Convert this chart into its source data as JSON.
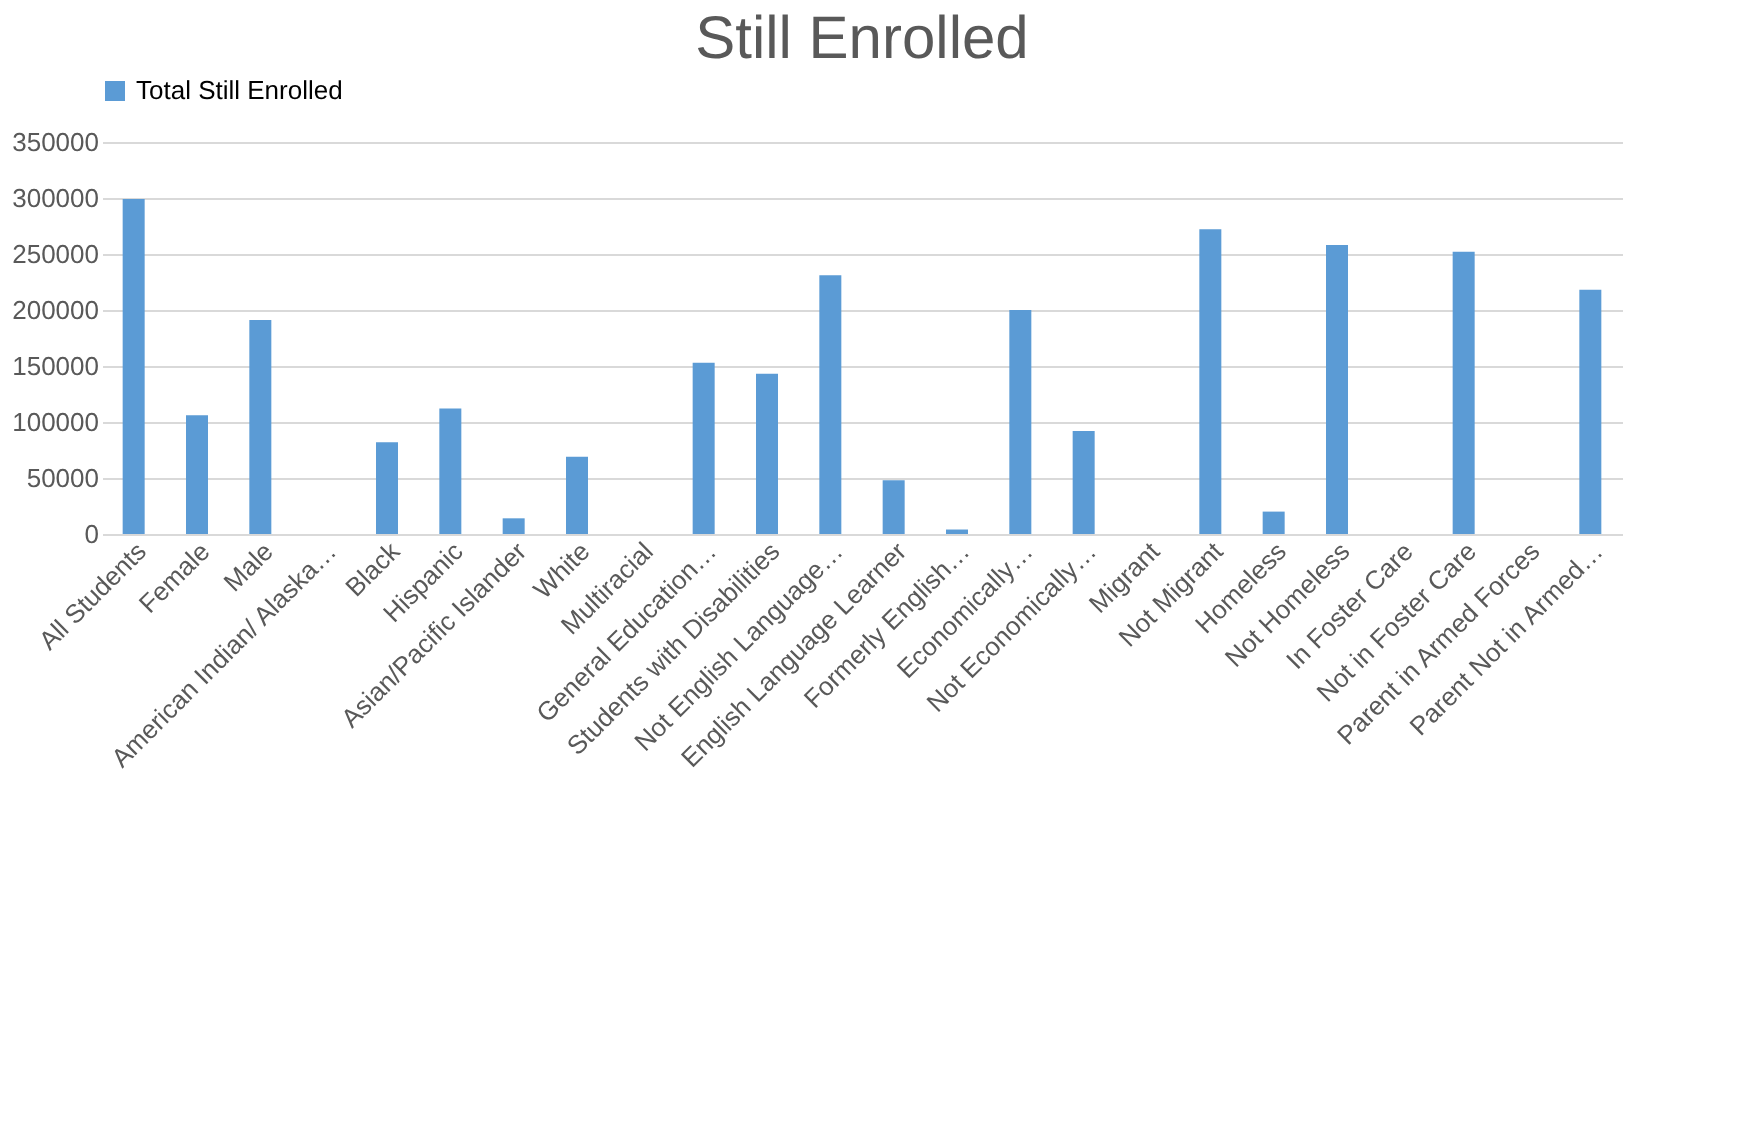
{
  "chart_data": {
    "type": "bar",
    "title": "Still Enrolled",
    "categories": [
      "All Students",
      "Female",
      "Male",
      "American Indian/ Alaska…",
      "Black",
      "Hispanic",
      "Asian/Pacific Islander",
      "White",
      "Multiracial",
      "General Education…",
      "Students with Disabilities",
      "Not English Language…",
      "English Language Learner",
      "Formerly English…",
      "Economically…",
      "Not Economically…",
      "Migrant",
      "Not Migrant",
      "Homeless",
      "Not Homeless",
      "In Foster Care",
      "Not in Foster Care",
      "Parent in Armed Forces",
      "Parent Not in Armed…"
    ],
    "series": [
      {
        "name": "Total Still Enrolled",
        "color": "#5b9bd5",
        "values": [
          299000,
          106000,
          191000,
          0,
          82000,
          112000,
          14000,
          69000,
          0,
          153000,
          143000,
          231000,
          48000,
          4000,
          200000,
          92000,
          0,
          272000,
          20000,
          258000,
          0,
          252000,
          0,
          218000
        ]
      }
    ],
    "ylim": [
      0,
      350000
    ],
    "yticks": [
      0,
      50000,
      100000,
      150000,
      200000,
      250000,
      300000,
      350000
    ],
    "grid": "y",
    "legend": "top"
  }
}
